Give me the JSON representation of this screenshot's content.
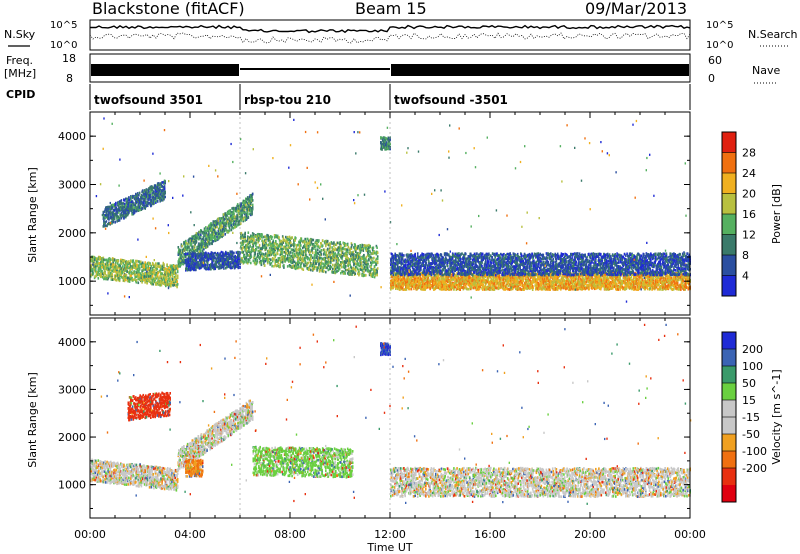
{
  "header": {
    "station": "Blackstone (fitACF)",
    "beam": "Beam 15",
    "date": "09/Mar/2013"
  },
  "status_panels": {
    "nsky_label": "N.Sky",
    "nsearch_label": "N.Search",
    "freq_label_1": "Freq.",
    "freq_label_2": "[MHz]",
    "nave_label": "Nave",
    "cpid_label": "CPID",
    "noise_ticks_left": [
      "10^5",
      "10^0"
    ],
    "noise_ticks_right": [
      "10^5",
      "10^0"
    ],
    "freq_ticks": [
      "18",
      "8"
    ],
    "nave_ticks": [
      "60",
      "0"
    ],
    "cpid_segments": [
      {
        "label": "twofsound 3501",
        "start_hour": 0,
        "end_hour": 6
      },
      {
        "label": "rbsp-tou 210",
        "start_hour": 6,
        "end_hour": 12
      },
      {
        "label": "twofsound -3501",
        "start_hour": 12,
        "end_hour": 24
      }
    ]
  },
  "colors": {
    "power_scale": [
      "#1f2bd6",
      "#2b4fa0",
      "#3a7a6a",
      "#55b060",
      "#b8c040",
      "#f0b020",
      "#f07010",
      "#e02010"
    ],
    "velocity_scale": [
      "#1f2bd6",
      "#3b64b4",
      "#3a9a6a",
      "#6ad040",
      "#c8c8c8",
      "#c8c8c8",
      "#f0a020",
      "#f07010",
      "#e83010",
      "#e00010"
    ]
  },
  "chart_data": [
    {
      "type": "heatmap",
      "title": "Power",
      "xlabel": "",
      "ylabel": "Slant Range [km]",
      "colorbar_label": "Power [dB]",
      "colorbar_ticks": [
        "28",
        "24",
        "20",
        "16",
        "12",
        "8",
        "4"
      ],
      "xlim": [
        0,
        24
      ],
      "ylim": [
        300,
        4500
      ],
      "x_ticks": [
        "00:00",
        "04:00",
        "08:00",
        "12:00",
        "16:00",
        "20:00",
        "00:00"
      ],
      "y_ticks": [
        "1000",
        "2000",
        "3000",
        "4000"
      ],
      "bands": [
        {
          "t_start": 0.0,
          "t_end": 3.5,
          "range_start": 1300,
          "range_end": 1100,
          "width": 450,
          "value": 18
        },
        {
          "t_start": 0.5,
          "t_end": 3.0,
          "range_start": 2300,
          "range_end": 2900,
          "width": 400,
          "value": 10
        },
        {
          "t_start": 3.5,
          "t_end": 6.5,
          "range_start": 1500,
          "range_end": 2600,
          "width": 450,
          "value": 14
        },
        {
          "t_start": 3.8,
          "t_end": 6.0,
          "range_start": 1400,
          "range_end": 1450,
          "width": 350,
          "value": 8
        },
        {
          "t_start": 6.0,
          "t_end": 11.5,
          "range_start": 1700,
          "range_end": 1400,
          "width": 650,
          "value": 16
        },
        {
          "t_start": 11.6,
          "t_end": 12.0,
          "range_start": 3850,
          "range_end": 3850,
          "width": 250,
          "value": 12
        },
        {
          "t_start": 12.0,
          "t_end": 24.0,
          "range_start": 1000,
          "range_end": 1000,
          "width": 350,
          "value": 24
        },
        {
          "t_start": 12.0,
          "t_end": 24.0,
          "range_start": 1350,
          "range_end": 1350,
          "width": 450,
          "value": 8
        }
      ]
    },
    {
      "type": "heatmap",
      "title": "Velocity",
      "xlabel": "Time UT",
      "ylabel": "Slant Range [km]",
      "colorbar_label": "Velocity [m s^-1]",
      "colorbar_ticks": [
        "200",
        "100",
        "50",
        "15",
        "-15",
        "-50",
        "-100",
        "-200"
      ],
      "xlim": [
        0,
        24
      ],
      "ylim": [
        300,
        4500
      ],
      "x_ticks": [
        "00:00",
        "04:00",
        "08:00",
        "12:00",
        "16:00",
        "20:00",
        "00:00"
      ],
      "y_ticks": [
        "1000",
        "2000",
        "3000",
        "4000"
      ],
      "bands": [
        {
          "t_start": 0.0,
          "t_end": 3.5,
          "range_start": 1300,
          "range_end": 1100,
          "width": 450,
          "value": 0
        },
        {
          "t_start": 1.5,
          "t_end": 3.2,
          "range_start": 2600,
          "range_end": 2700,
          "width": 500,
          "value": -150
        },
        {
          "t_start": 3.5,
          "t_end": 6.5,
          "range_start": 1500,
          "range_end": 2600,
          "width": 450,
          "value": 0
        },
        {
          "t_start": 3.8,
          "t_end": 4.5,
          "range_start": 1350,
          "range_end": 1350,
          "width": 350,
          "value": -50
        },
        {
          "t_start": 6.5,
          "t_end": 10.5,
          "range_start": 1500,
          "range_end": 1450,
          "width": 600,
          "value": 30
        },
        {
          "t_start": 11.6,
          "t_end": 12.0,
          "range_start": 3850,
          "range_end": 3850,
          "width": 250,
          "value": 200
        },
        {
          "t_start": 12.0,
          "t_end": 24.0,
          "range_start": 1050,
          "range_end": 1050,
          "width": 600,
          "value": 0
        }
      ]
    }
  ]
}
